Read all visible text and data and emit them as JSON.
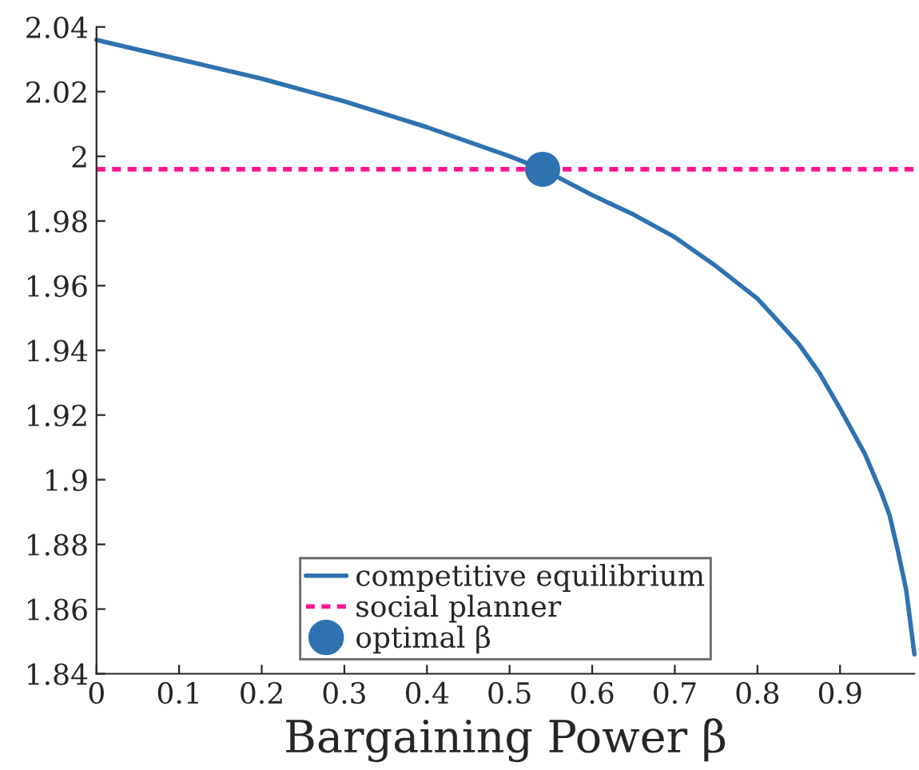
{
  "chart_data": {
    "type": "line",
    "xlabel": "Bargaining Power β",
    "xlim": [
      0,
      0.99
    ],
    "xticks": [
      0,
      0.1,
      0.2,
      0.3,
      0.4,
      0.5,
      0.6,
      0.7,
      0.8,
      0.9
    ],
    "ylim": [
      1.84,
      2.04
    ],
    "yticks": [
      1.84,
      1.86,
      1.88,
      1.9,
      1.92,
      1.94,
      1.96,
      1.98,
      {
        "value": 2.0,
        "label": "2"
      },
      2.02,
      2.04
    ],
    "grid": false,
    "legend": "bottom",
    "series": [
      {
        "name": "competitive equilibrium",
        "color": "#2e72b0",
        "line_style": "solid",
        "x": [
          0,
          0.1,
          0.2,
          0.3,
          0.4,
          0.5,
          0.54,
          0.6,
          0.65,
          0.7,
          0.75,
          0.8,
          0.825,
          0.85,
          0.875,
          0.9,
          0.93,
          0.95,
          0.96,
          0.97,
          0.98,
          0.99
        ],
        "values": [
          2.036,
          2.03,
          2.024,
          2.017,
          2.009,
          2.0,
          1.996,
          1.988,
          1.982,
          1.975,
          1.966,
          1.956,
          1.949,
          1.942,
          1.933,
          1.922,
          1.908,
          1.896,
          1.889,
          1.878,
          1.866,
          1.846
        ]
      },
      {
        "name": "social planner",
        "type": "line",
        "color": "#ff1493",
        "line_style": "dotted",
        "x": [
          0,
          0.99
        ],
        "values": [
          1.996,
          1.996
        ]
      },
      {
        "name": "optimal β",
        "type": "scatter",
        "color": "#2e72b0",
        "marker": "circle",
        "x": [
          0.54
        ],
        "values": [
          1.996
        ]
      }
    ]
  }
}
